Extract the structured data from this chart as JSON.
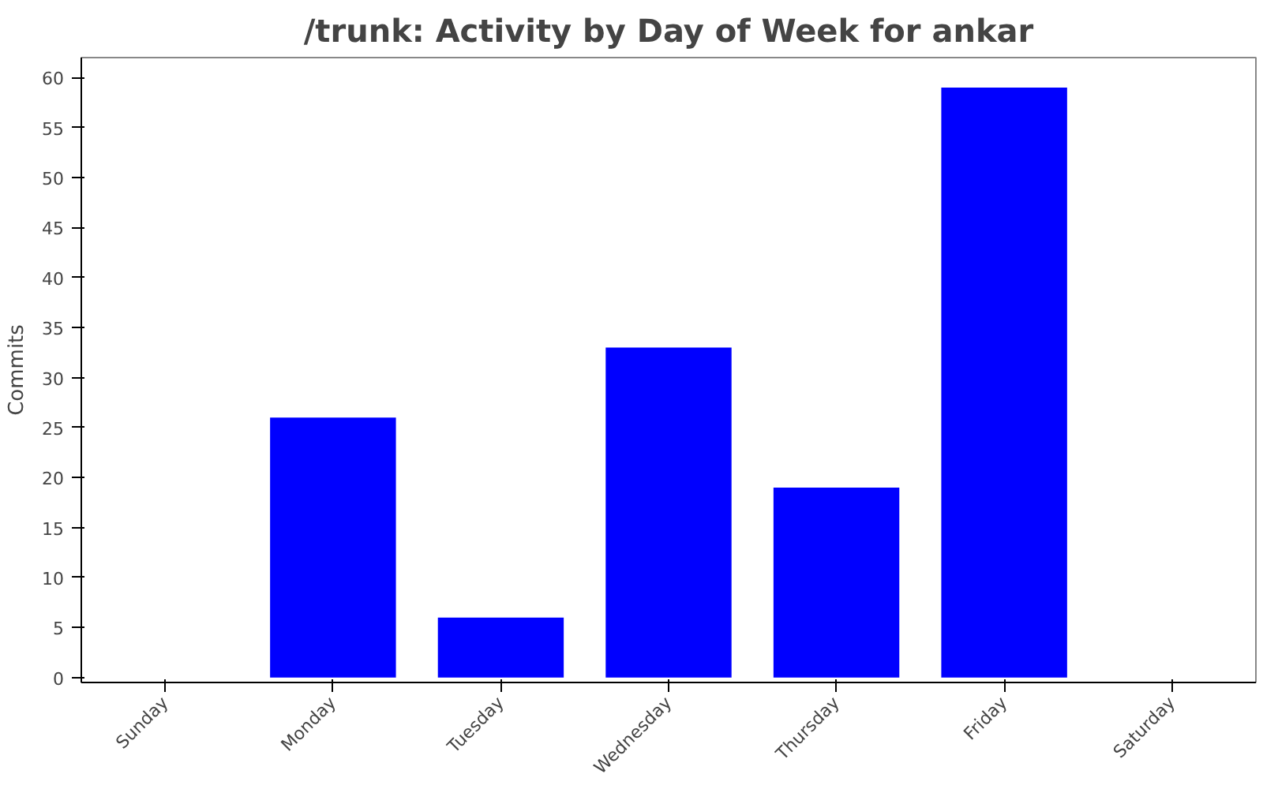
{
  "chart_data": {
    "type": "bar",
    "title": "/trunk: Activity by Day of Week for ankar",
    "ylabel": "Commits",
    "categories": [
      "Sunday",
      "Monday",
      "Tuesday",
      "Wednesday",
      "Thursday",
      "Friday",
      "Saturday"
    ],
    "values": [
      0,
      26,
      6,
      33,
      19,
      59,
      0
    ],
    "color": "#0000ff",
    "ylim": [
      -0.5,
      62
    ],
    "yticks": [
      0,
      5,
      10,
      15,
      20,
      25,
      30,
      35,
      40,
      45,
      50,
      55,
      60
    ],
    "grid": false
  }
}
